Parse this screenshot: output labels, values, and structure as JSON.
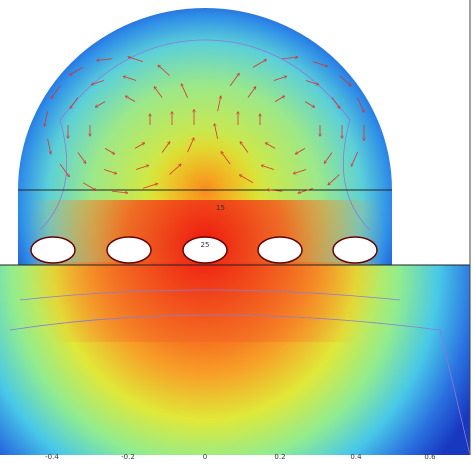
{
  "figure": {
    "contour_labels": [
      "15",
      "25"
    ],
    "x_tick_labels": [
      "-0.4",
      "-0.2",
      "0",
      "0.2",
      "0.4",
      "0.6"
    ]
  }
}
